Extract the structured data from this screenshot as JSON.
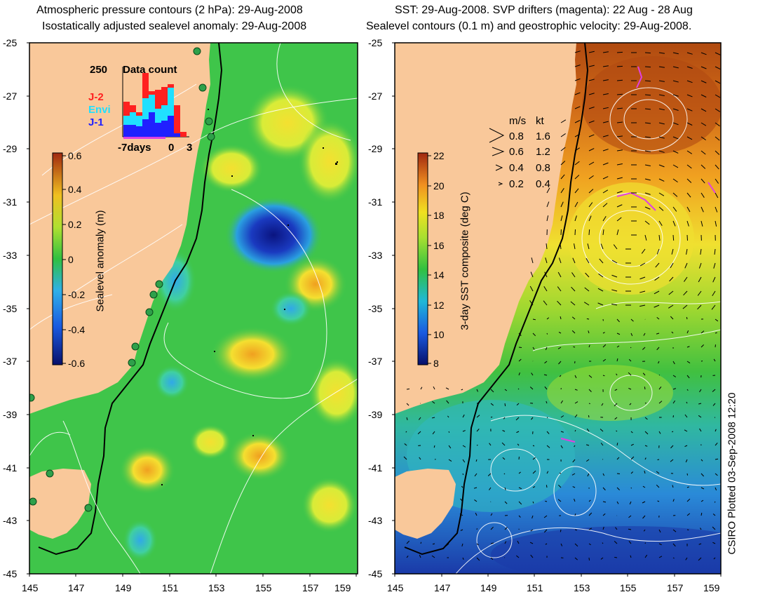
{
  "left_panel": {
    "title_line1": "Atmospheric pressure contours (2 hPa): 29-Aug-2008",
    "title_line2": "Isostatically adjusted sealevel anomaly: 29-Aug-2008",
    "y_ticks": [
      "-25",
      "-27",
      "-29",
      "-31",
      "-33",
      "-35",
      "-37",
      "-39",
      "-41",
      "-43",
      "-45"
    ],
    "x_ticks": [
      "145",
      "147",
      "149",
      "151",
      "153",
      "155",
      "157",
      "159"
    ],
    "colorbar": {
      "label": "Sealevel anomaly (m)",
      "ticks": [
        "0.6",
        "0.4",
        "0.2",
        "0",
        "-0.2",
        "-0.4",
        "-0.6"
      ],
      "range": [
        -0.6,
        0.6
      ]
    },
    "data_count": {
      "max_label": "250",
      "title": "Data count",
      "legend": [
        {
          "name": "J-2",
          "color": "#ff2020"
        },
        {
          "name": "Envi",
          "color": "#20e0ff"
        },
        {
          "name": "J-1",
          "color": "#2020ff"
        }
      ],
      "axis_left": "-7days",
      "axis_mid": "0",
      "axis_right": "3"
    }
  },
  "right_panel": {
    "title_line1": "SST: 29-Aug-2008. SVP drifters (magenta): 22 Aug - 28 Aug",
    "title_line2": "Sealevel contours (0.1 m) and geostrophic velocity: 29-Aug-2008.",
    "y_ticks": [
      "-25",
      "-27",
      "-29",
      "-31",
      "-33",
      "-35",
      "-37",
      "-39",
      "-41",
      "-43",
      "-45"
    ],
    "x_ticks": [
      "145",
      "147",
      "149",
      "151",
      "153",
      "155",
      "157",
      "159"
    ],
    "colorbar": {
      "label": "3-day SST composite (deg C)",
      "ticks": [
        "22",
        "20",
        "18",
        "16",
        "14",
        "12",
        "10",
        "8"
      ],
      "range": [
        8,
        22
      ]
    },
    "velocity_legend": {
      "header_ms": "m/s",
      "header_kt": "kt",
      "rows": [
        {
          "ms": "0.8",
          "kt": "1.6"
        },
        {
          "ms": "0.6",
          "kt": "1.2"
        },
        {
          "ms": "0.4",
          "kt": "0.8"
        },
        {
          "ms": "0.2",
          "kt": "0.4"
        }
      ]
    }
  },
  "credit": "CSIRO Plotted 03-Sep-2008 12:20",
  "colors": {
    "land": "#f9c89a",
    "ocean_mid": "#3fc54a",
    "high_anomaly": "#f0f030",
    "low_anomaly": "#0a1a9a",
    "drifter": "#e040e0"
  }
}
